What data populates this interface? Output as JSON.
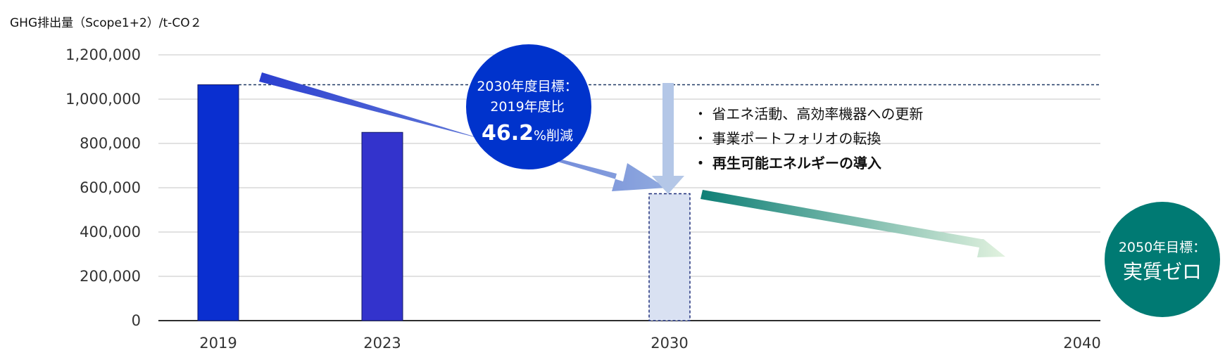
{
  "chart_data": {
    "type": "bar",
    "title": "",
    "ylabel": "GHG排出量（Scope1+2）/t-CO２",
    "xlabel": "",
    "ylim": [
      0,
      1200000
    ],
    "yticks": [
      0,
      200000,
      400000,
      600000,
      800000,
      1000000,
      1200000
    ],
    "ytick_labels": [
      "0",
      "200,000",
      "400,000",
      "600,000",
      "800,000",
      "1,000,000",
      "1,200,000"
    ],
    "x_axis_years": [
      "2019",
      "2023",
      "2030",
      "2040"
    ],
    "bars": [
      {
        "year": "2019",
        "value": 1065000,
        "color": "#0a2fd0",
        "style": "solid"
      },
      {
        "year": "2023",
        "value": 850000,
        "color": "#3333cc",
        "style": "solid"
      },
      {
        "year": "2030",
        "value": 573000,
        "color": "#d9e1f2",
        "style": "dashed-target"
      }
    ],
    "reference_line_value": 1065000,
    "grid": true,
    "annotations": {
      "target_2030": {
        "line1": "2030年度目標：",
        "line2": "2019年度比",
        "big": "46.2",
        "unit": "%削減",
        "color": "#0033cc"
      },
      "target_2050": {
        "line1": "2050年目標：",
        "line2": "実質ゼロ",
        "color": "#007a73"
      },
      "measures": [
        {
          "text": "・ 省エネ活動、高効率機器への更新",
          "bold": false
        },
        {
          "text": "・ 事業ポートフォリオの転換",
          "bold": false
        },
        {
          "text": "・ 再生可能エネルギーの導入",
          "bold": true
        }
      ]
    }
  }
}
